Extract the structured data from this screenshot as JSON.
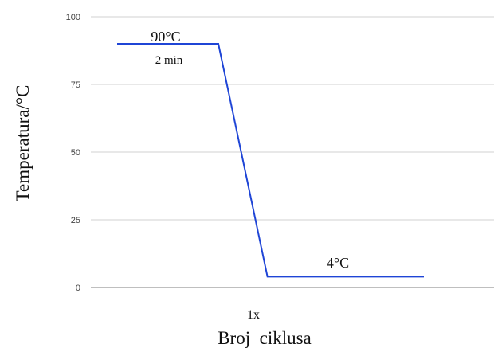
{
  "chart_data": {
    "type": "line",
    "xlabel": "Broj  ciklusa",
    "ylabel": "Temperatura/°C",
    "ylim": [
      0,
      100
    ],
    "yticks": [
      "0",
      "25",
      "50",
      "75",
      "100"
    ],
    "grid": true,
    "series": [
      {
        "points": [
          {
            "x": 0.0,
            "y": 90
          },
          {
            "x": 0.33,
            "y": 90
          },
          {
            "x": 0.49,
            "y": 4
          },
          {
            "x": 1.0,
            "y": 4
          }
        ]
      }
    ],
    "category_label": "1x",
    "annotations": {
      "hold_temp_1": "90°C",
      "hold_time_1": "2 min",
      "hold_temp_2": "4°C"
    },
    "colors": {
      "line": "#1f45d6",
      "grid": "#d0d0d0",
      "baseline": "#999999"
    }
  }
}
